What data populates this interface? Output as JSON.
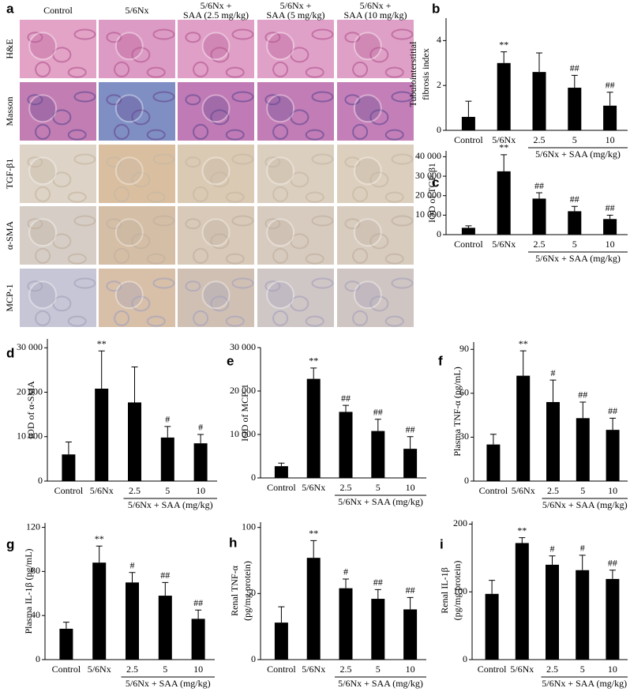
{
  "panel_a": {
    "label": "a",
    "columns": [
      [
        "Control"
      ],
      [
        "5/6Nx"
      ],
      [
        "5/6Nx +",
        "SAA (2.5 mg/kg)"
      ],
      [
        "5/6Nx +",
        "SAA (5 mg/kg)"
      ],
      [
        "5/6Nx +",
        "SAA (10 mg/kg)"
      ]
    ],
    "rows": [
      "H&E",
      "Masson",
      "TGF-β1",
      "α-SMA",
      "MCP-1"
    ]
  },
  "chart_data": [
    {
      "type": "bar",
      "panel": "b",
      "ylabel": [
        "Tubulointerstitial",
        "fibrosis index"
      ],
      "categories": [
        "Control",
        "5/6Nx",
        "2.5",
        "5",
        "10"
      ],
      "group_label": "5/6Nx + SAA (mg/kg)",
      "values": [
        0.6,
        3.0,
        2.6,
        1.9,
        1.1
      ],
      "errors": [
        0.7,
        0.5,
        0.85,
        0.55,
        0.6
      ],
      "sig_labels": [
        null,
        "**",
        null,
        "##",
        "##"
      ],
      "color": "#000000",
      "ylim": [
        0,
        5
      ],
      "yticks": [
        0,
        2,
        4
      ]
    },
    {
      "type": "bar",
      "panel": "c",
      "ylabel": [
        "IOD of TGF-β1"
      ],
      "categories": [
        "Control",
        "5/6Nx",
        "2.5",
        "5",
        "10"
      ],
      "group_label": "5/6Nx + SAA (mg/kg)",
      "values": [
        3500,
        32500,
        18500,
        12000,
        8000
      ],
      "errors": [
        1000,
        8500,
        3000,
        2500,
        2000
      ],
      "sig_labels": [
        null,
        "**",
        "##",
        "##",
        "##"
      ],
      "color": "#000000",
      "ylim": [
        0,
        43000
      ],
      "yticks": [
        0,
        {
          "value": 10000,
          "label": "10 000"
        },
        {
          "value": 20000,
          "label": "20 000"
        },
        {
          "value": 30000,
          "label": "30 000"
        },
        {
          "value": 40000,
          "label": "40 000"
        }
      ]
    },
    {
      "type": "bar",
      "panel": "d",
      "ylabel": [
        "IOD of α-SMA"
      ],
      "categories": [
        "Control",
        "5/6Nx",
        "2.5",
        "5",
        "10"
      ],
      "group_label": "5/6Nx + SAA (mg/kg)",
      "values": [
        6000,
        20800,
        17700,
        9800,
        8500
      ],
      "errors": [
        2800,
        8500,
        8000,
        2500,
        2000
      ],
      "sig_labels": [
        null,
        "**",
        null,
        "#",
        "#"
      ],
      "color": "#000000",
      "ylim": [
        0,
        32000
      ],
      "yticks": [
        0,
        {
          "value": 10000,
          "label": "10 000"
        },
        {
          "value": 20000,
          "label": "20 000"
        },
        {
          "value": 30000,
          "label": "30 000"
        }
      ]
    },
    {
      "type": "bar",
      "panel": "e",
      "ylabel": [
        "IOD of MCP-1"
      ],
      "categories": [
        "Control",
        "5/6Nx",
        "2.5",
        "5",
        "10"
      ],
      "group_label": "5/6Nx + SAA (mg/kg)",
      "values": [
        2700,
        22800,
        15200,
        10800,
        6700
      ],
      "errors": [
        700,
        2500,
        1500,
        2700,
        2800
      ],
      "sig_labels": [
        null,
        "**",
        "##",
        "##",
        "##"
      ],
      "color": "#000000",
      "ylim": [
        0,
        30000
      ],
      "yticks": [
        0,
        {
          "value": 10000,
          "label": "10 000"
        },
        {
          "value": 20000,
          "label": "20 000"
        },
        {
          "value": 30000,
          "label": "30 000"
        }
      ]
    },
    {
      "type": "bar",
      "panel": "f",
      "ylabel": [
        "Plasma TNF-α (pg/mL)"
      ],
      "categories": [
        "Control",
        "5/6Nx",
        "2.5",
        "5",
        "10"
      ],
      "group_label": "5/6Nx + SAA (mg/kg)",
      "values": [
        25,
        72,
        54,
        43,
        35
      ],
      "errors": [
        7,
        17,
        15,
        11,
        8
      ],
      "sig_labels": [
        null,
        "**",
        "#",
        "##",
        "##"
      ],
      "color": "#000000",
      "ylim": [
        0,
        95
      ],
      "yticks": [
        0,
        30,
        60,
        90
      ]
    },
    {
      "type": "bar",
      "panel": "g",
      "ylabel": [
        "Plasma IL-1β (pg/mL)"
      ],
      "categories": [
        "Control",
        "5/6Nx",
        "2.5",
        "5",
        "10"
      ],
      "group_label": "5/6Nx + SAA (mg/kg)",
      "values": [
        28,
        88,
        70,
        58,
        37
      ],
      "errors": [
        6,
        15,
        9,
        12,
        8
      ],
      "sig_labels": [
        null,
        "**",
        "#",
        "##",
        "##"
      ],
      "color": "#000000",
      "ylim": [
        0,
        124
      ],
      "yticks": [
        0,
        40,
        80,
        120
      ]
    },
    {
      "type": "bar",
      "panel": "h",
      "ylabel": [
        "Renal TNF-α",
        "(pg/mg protein)"
      ],
      "categories": [
        "Control",
        "5/6Nx",
        "2.5",
        "5",
        "10"
      ],
      "group_label": "5/6Nx + SAA (mg/kg)",
      "values": [
        28,
        77,
        54,
        46,
        38
      ],
      "errors": [
        12,
        13,
        7,
        7,
        9
      ],
      "sig_labels": [
        null,
        "**",
        "#",
        "##",
        "##"
      ],
      "color": "#000000",
      "ylim": [
        0,
        104
      ],
      "yticks": [
        0,
        50,
        100
      ]
    },
    {
      "type": "bar",
      "panel": "i",
      "ylabel": [
        "Renal IL-1β",
        "(pg/mg protein)"
      ],
      "categories": [
        "Control",
        "5/6Nx",
        "2.5",
        "5",
        "10"
      ],
      "group_label": "5/6Nx + SAA (mg/kg)",
      "values": [
        97,
        172,
        140,
        132,
        119
      ],
      "errors": [
        20,
        8,
        13,
        22,
        13
      ],
      "sig_labels": [
        null,
        "**",
        "#",
        "#",
        "##"
      ],
      "color": "#000000",
      "ylim": [
        0,
        204
      ],
      "yticks": [
        0,
        100,
        200
      ]
    }
  ]
}
